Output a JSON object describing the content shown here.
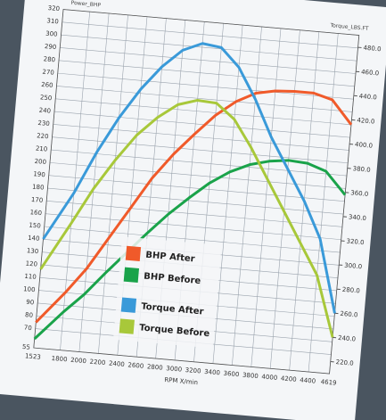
{
  "chart_data": {
    "type": "line",
    "title": "Power_BHP",
    "y2_title": "Torque_LBS.FT",
    "xlabel": "RPM X/min",
    "x": [
      1523,
      1800,
      2000,
      2200,
      2400,
      2600,
      2800,
      3000,
      3200,
      3400,
      3600,
      3800,
      4000,
      4200,
      4400,
      4619
    ],
    "xlim": [
      1523,
      4619
    ],
    "xticks": [
      1523,
      1800,
      2000,
      2200,
      2400,
      2600,
      2800,
      3000,
      3200,
      3400,
      3600,
      3800,
      4000,
      4200,
      4400,
      4619
    ],
    "ylim": [
      55,
      320
    ],
    "yticks": [
      55,
      70,
      80,
      90,
      100,
      110,
      120,
      130,
      140,
      150,
      160,
      170,
      180,
      190,
      200,
      210,
      220,
      230,
      240,
      250,
      260,
      270,
      280,
      290,
      300,
      310,
      320
    ],
    "y2lim": [
      210,
      490
    ],
    "y2ticks": [
      {
        "value": 220,
        "label": "220.0"
      },
      {
        "value": 240,
        "label": "240.0"
      },
      {
        "value": 260,
        "label": "260.0"
      },
      {
        "value": 280,
        "label": "280.0"
      },
      {
        "value": 300,
        "label": "300.0"
      },
      {
        "value": 320,
        "label": "320.0"
      },
      {
        "value": 340,
        "label": "340.0"
      },
      {
        "value": 360,
        "label": "360.0"
      },
      {
        "value": 380,
        "label": "380.0"
      },
      {
        "value": 400,
        "label": "400.0"
      },
      {
        "value": 420,
        "label": "420.0"
      },
      {
        "value": 440,
        "label": "440.0"
      },
      {
        "value": 460,
        "label": "460.0"
      },
      {
        "value": 480,
        "label": "480.0"
      }
    ],
    "grid": true,
    "series": [
      {
        "name": "BHP After",
        "color": "#f05a2a",
        "values": [
          75,
          100,
          120,
          145,
          170,
          195,
          215,
          232,
          248,
          260,
          268,
          271,
          272,
          272,
          268,
          250
        ]
      },
      {
        "name": "BHP Before",
        "color": "#1aa34a",
        "values": [
          62,
          85,
          100,
          118,
          135,
          152,
          168,
          182,
          195,
          205,
          212,
          216,
          218,
          217,
          212,
          195
        ]
      },
      {
        "name": "Torque After",
        "color": "#3a9ad9",
        "axis": "y2",
        "values": [
          300,
          340,
          375,
          405,
          430,
          450,
          465,
          472,
          470,
          455,
          430,
          400,
          375,
          350,
          320,
          260
        ]
      },
      {
        "name": "Torque Before",
        "color": "#a8c83a",
        "axis": "y2",
        "values": [
          275,
          315,
          345,
          370,
          392,
          408,
          420,
          425,
          424,
          412,
          390,
          365,
          340,
          315,
          290,
          240
        ]
      }
    ]
  }
}
